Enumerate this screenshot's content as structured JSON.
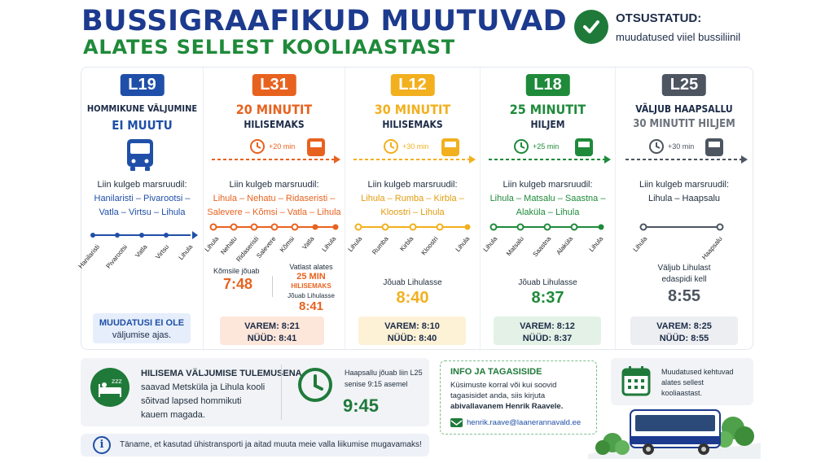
{
  "header": {
    "title_line1": "BUSSIGRAAFIKUD MUUTUVAD",
    "title_line2": "ALATES SELLEST KOOLIAASTAST",
    "approved_label": "OTSUSTATUD:",
    "approved_text": "muudatused viiel bussiliinil"
  },
  "routes": [
    {
      "id": "L19",
      "color": "#1f4fa8",
      "headline_1": "HOMMIKUNE VÄLJUMINE",
      "headline_2": "EI MUUTU",
      "route_label": "Liin kulgeb marsruudil:",
      "route_lines": [
        "Hanilaristi – Pivarootsi –",
        "Vatla – Virtsu – Lihula"
      ],
      "stops": [
        "Hanilaristi",
        "Pivarootsi",
        "Vatla",
        "Virtsu",
        "Lihula"
      ],
      "note_1": "MUUDATUSI EI OLE",
      "note_2": "väljumise ajas."
    },
    {
      "id": "L31",
      "color": "#e8621f",
      "headline_1": "20 MINUTIT",
      "headline_2": "HILISEMAKS",
      "delay": "+20 min",
      "route_label": "Liin kulgeb marsruudil:",
      "route_lines": [
        "Lihula – Nehatu – Ridaseristi –",
        "Salevere – Kõmsi – Vatla – Lihula"
      ],
      "stops": [
        "Lihula",
        "Nehatu",
        "Ridaseristi",
        "Salevere",
        "Kõmsi",
        "Vatla",
        "Lihula"
      ],
      "komsi_label": "Kõmsile jõuab",
      "komsi_time": "7:48",
      "vatla_label": "Vatlast alates",
      "vatla_delay_1": "25 MIN",
      "vatla_delay_2": "HILISEMAKS",
      "arrive_label": "Jõuab Lihulasse",
      "arrive_time": "8:41",
      "before_label": "VAREM:",
      "before_time": "8:21",
      "now_label": "NÜÜD:",
      "now_time": "8:41"
    },
    {
      "id": "L12",
      "color": "#f2b01e",
      "headline_1": "30 MINUTIT",
      "headline_2": "HILISEMAKS",
      "delay": "+30 min",
      "route_label": "Liin kulgeb marsruudil:",
      "route_lines": [
        "Lihula – Rumba – Kirbla –",
        "Kloostri – Lihula"
      ],
      "stops": [
        "Lihula",
        "Rumba",
        "Kirbla",
        "Kloostri",
        "Lihula"
      ],
      "arrive_label": "Jõuab Lihulasse",
      "arrive_time": "8:40",
      "before_label": "VAREM:",
      "before_time": "8:10",
      "now_label": "NÜÜD:",
      "now_time": "8:40"
    },
    {
      "id": "L18",
      "color": "#1f8a3a",
      "headline_1": "25 MINUTIT",
      "headline_2": "HILJEM",
      "delay": "+25 min",
      "route_label": "Liin kulgeb marsruudil:",
      "route_lines": [
        "Lihula – Matsalu – Saastna –",
        "Alaküla – Lihula"
      ],
      "stops": [
        "Lihula",
        "Matsalu",
        "Saastna",
        "Alaküla",
        "Lihula"
      ],
      "arrive_label": "Jõuab Lihulasse",
      "arrive_time": "8:37",
      "before_label": "VAREM:",
      "before_time": "8:12",
      "now_label": "NÜÜD:",
      "now_time": "8:37"
    },
    {
      "id": "L25",
      "color": "#4d5561",
      "headline_1": "VÄLJUB HAAPSALLU",
      "headline_2": "30 MINUTIT HILJEM",
      "delay": "+30 min",
      "route_label": "Liin kulgeb marsruudil:",
      "route_lines": [
        "Lihula – Haapsalu"
      ],
      "stops": [
        "Lihula",
        "Haapsalu"
      ],
      "depart_label_1": "Väljub Lihulast",
      "depart_label_2": "edaspidi kell",
      "depart_time": "8:55",
      "before_label": "VAREM:",
      "before_time": "8:25",
      "now_label": "NÜÜD:",
      "now_time": "8:55"
    }
  ],
  "sleep": {
    "title": "HILISEMA VÄLJUMISE TULEMUSENA",
    "text": [
      "saavad Metsküla ja Lihula kooli",
      "sõitvad lapsed hommikuti",
      "kauem magada."
    ]
  },
  "haapsalu": {
    "text_1": "Haapsallu jõuab liin L25",
    "text_2": "senise 9:15 asemel",
    "time": "9:45"
  },
  "info": {
    "title": "INFO JA TAGASISIDE",
    "text": [
      "Küsimuste korral või kui soovid",
      "tagasisidet anda, siis kirjuta"
    ],
    "contact": "abivallavanem Henrik Raavele.",
    "email": "henrik.raave@laanerannavald.ee"
  },
  "calendar": {
    "text": [
      "Muudatused kehtuvad",
      "alates sellest",
      "kooliaastast."
    ]
  },
  "footer": {
    "text": "Täname, et kasutad ühistransporti ja aitad muuta meie valla liikumise mugavamaks!"
  }
}
